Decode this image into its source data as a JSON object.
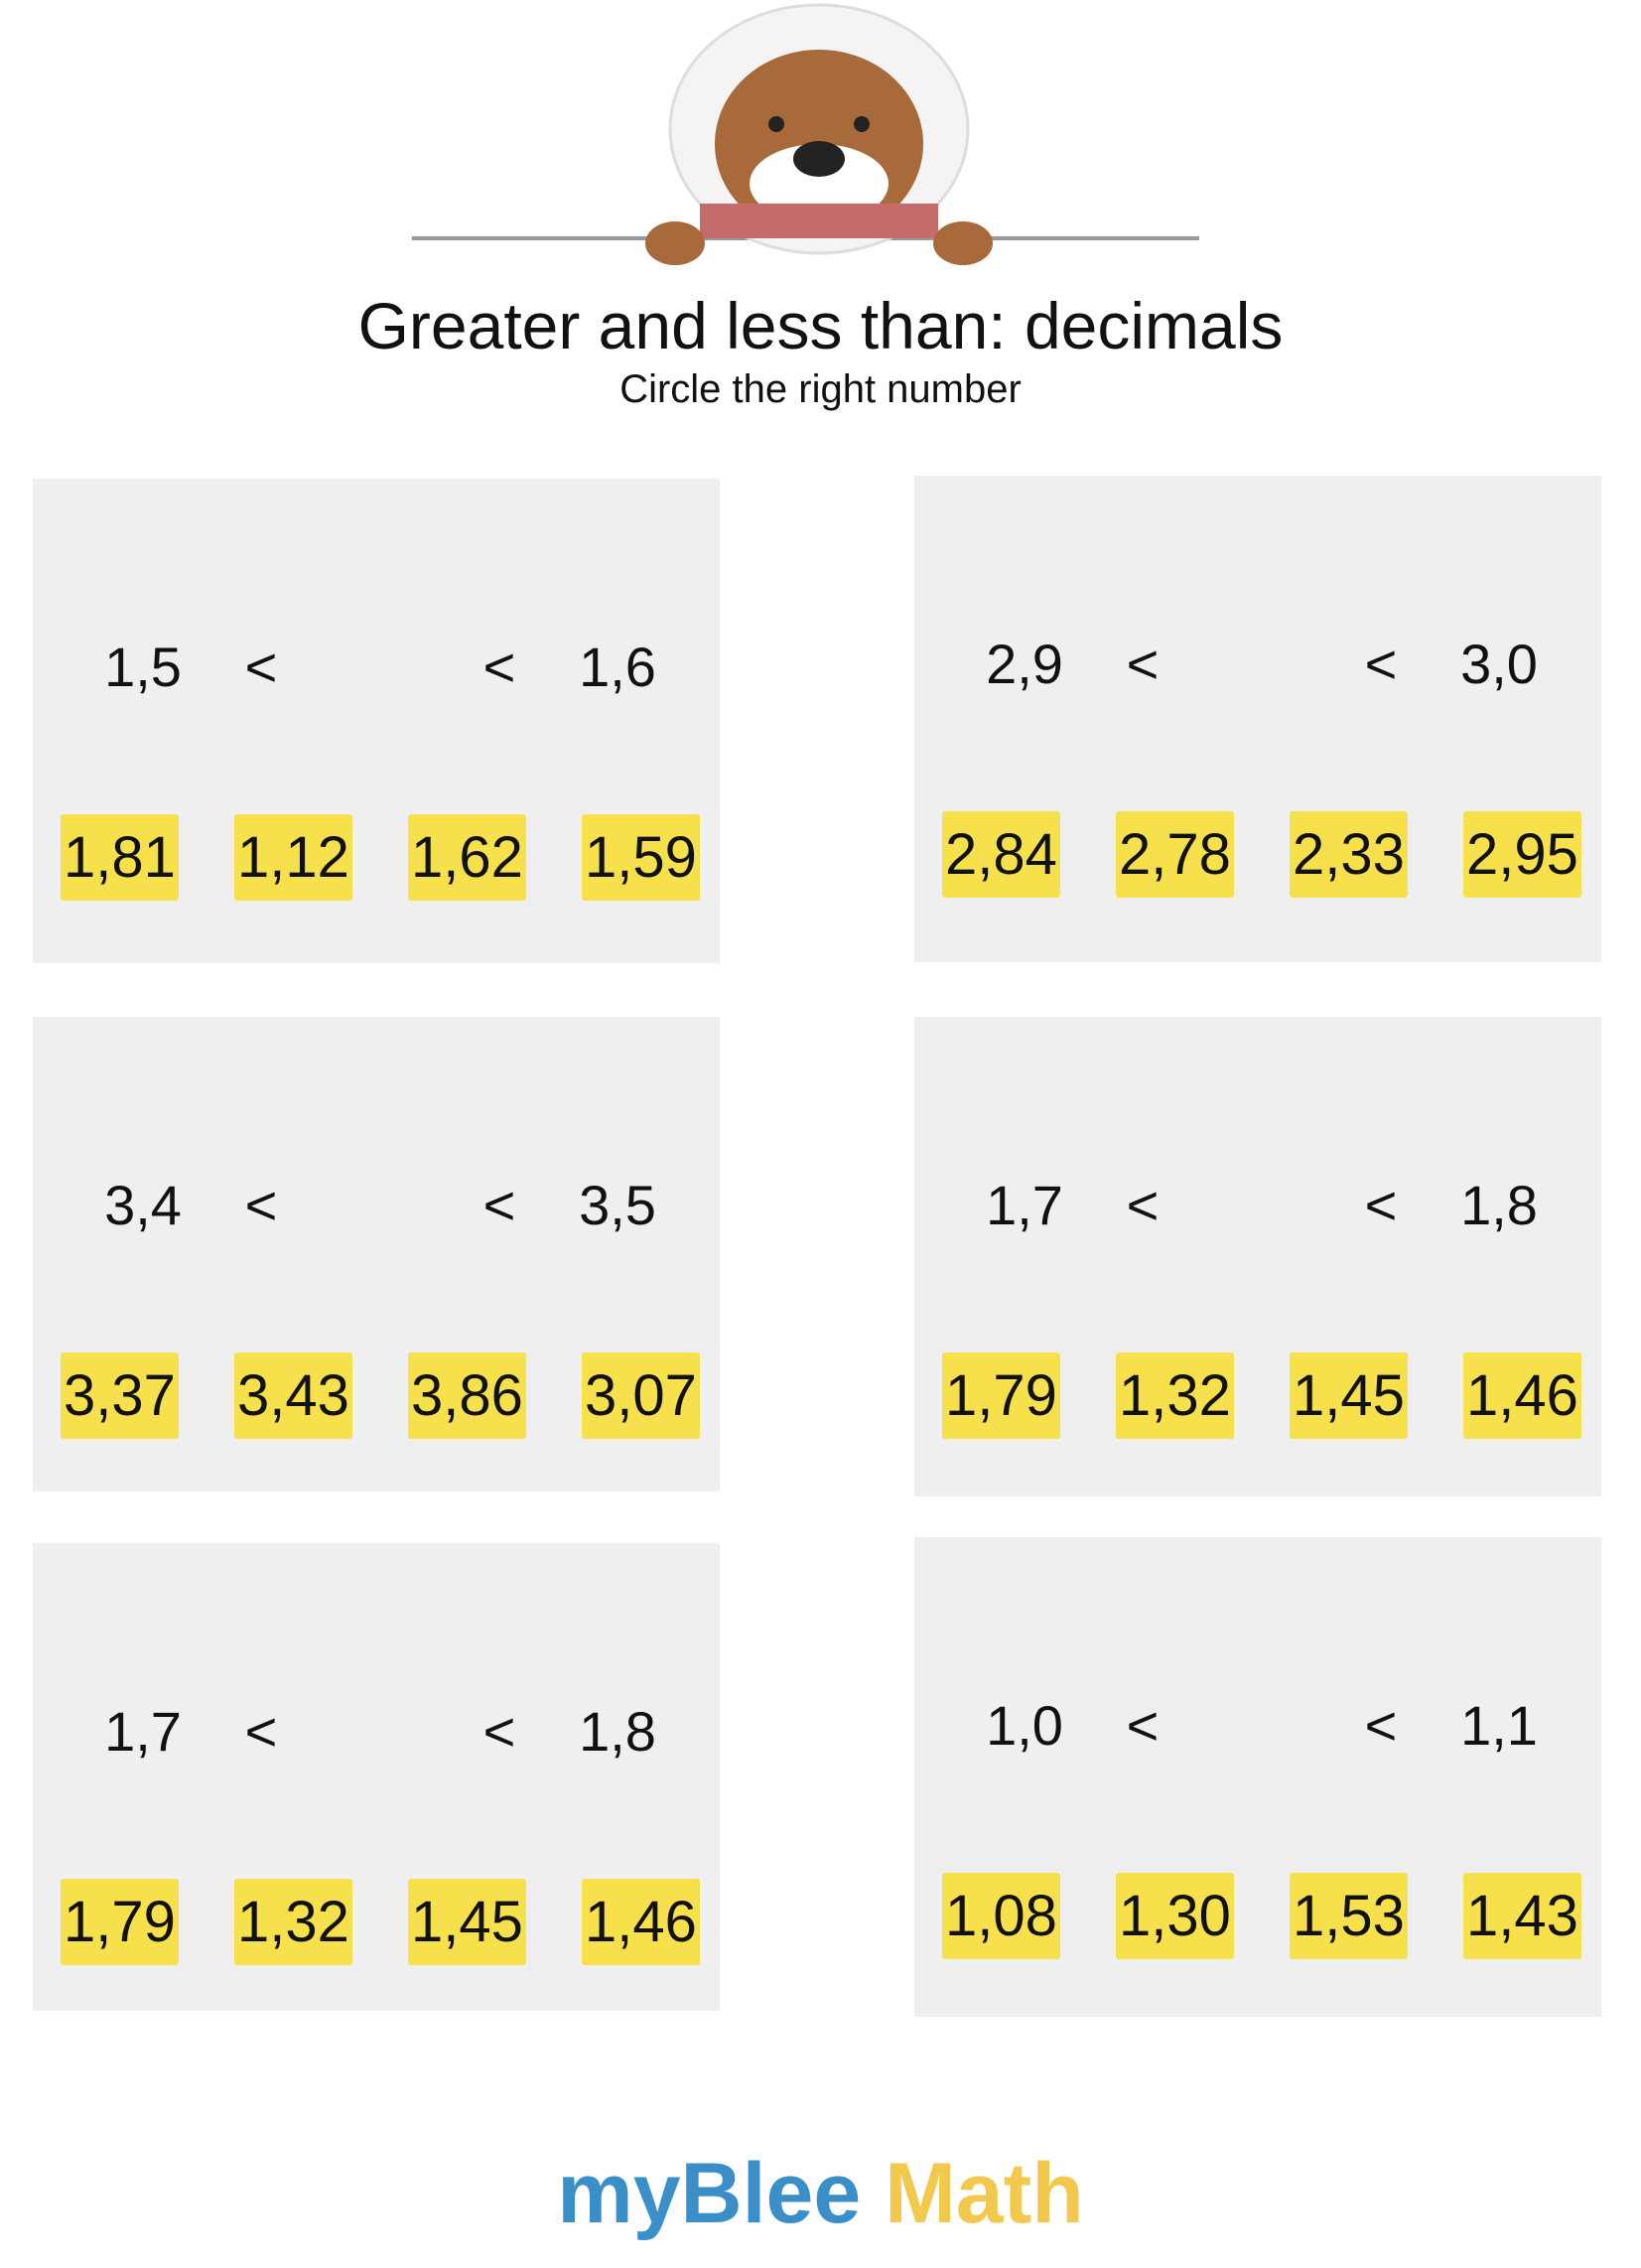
{
  "header": {
    "title": "Greater and less than: decimals",
    "subtitle": "Circle the right number"
  },
  "panels": [
    {
      "left": "1,5",
      "op_left": "<",
      "op_right": "<",
      "right": "1,6",
      "options": [
        "1,81",
        "1,12",
        "1,62",
        "1,59"
      ]
    },
    {
      "left": "2,9",
      "op_left": "<",
      "op_right": "<",
      "right": "3,0",
      "options": [
        "2,84",
        "2,78",
        "2,33",
        "2,95"
      ]
    },
    {
      "left": "3,4",
      "op_left": "<",
      "op_right": "<",
      "right": "3,5",
      "options": [
        "3,37",
        "3,43",
        "3,86",
        "3,07"
      ]
    },
    {
      "left": "1,7",
      "op_left": "<",
      "op_right": "<",
      "right": "1,8",
      "options": [
        "1,79",
        "1,32",
        "1,45",
        "1,46"
      ]
    },
    {
      "left": "1,7",
      "op_left": "<",
      "op_right": "<",
      "right": "1,8",
      "options": [
        "1,79",
        "1,32",
        "1,45",
        "1,46"
      ]
    },
    {
      "left": "1,0",
      "op_left": "<",
      "op_right": "<",
      "right": "1,1",
      "options": [
        "1,08",
        "1,30",
        "1,53",
        "1,43"
      ]
    }
  ],
  "footer": {
    "brand": "myBlee",
    "subject": "Math"
  }
}
